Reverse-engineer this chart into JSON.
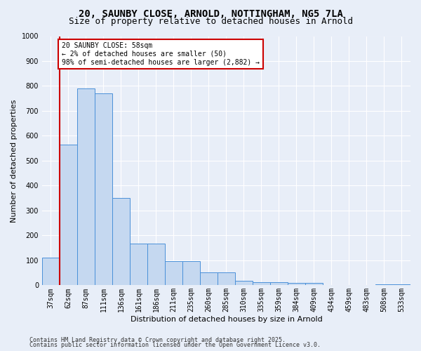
{
  "title_line1": "20, SAUNBY CLOSE, ARNOLD, NOTTINGHAM, NG5 7LA",
  "title_line2": "Size of property relative to detached houses in Arnold",
  "xlabel": "Distribution of detached houses by size in Arnold",
  "ylabel": "Number of detached properties",
  "footnote_line1": "Contains HM Land Registry data © Crown copyright and database right 2025.",
  "footnote_line2": "Contains public sector information licensed under the Open Government Licence v3.0.",
  "bar_labels": [
    "37sqm",
    "62sqm",
    "87sqm",
    "111sqm",
    "136sqm",
    "161sqm",
    "186sqm",
    "211sqm",
    "235sqm",
    "260sqm",
    "285sqm",
    "310sqm",
    "335sqm",
    "359sqm",
    "384sqm",
    "409sqm",
    "434sqm",
    "459sqm",
    "483sqm",
    "508sqm",
    "533sqm"
  ],
  "bar_values": [
    112,
    565,
    790,
    770,
    350,
    168,
    168,
    97,
    97,
    53,
    53,
    18,
    13,
    13,
    10,
    10,
    0,
    0,
    0,
    5,
    5
  ],
  "bar_color": "#c5d8f0",
  "bar_edge_color": "#4a90d9",
  "vline_color": "#cc0000",
  "vline_pos": 0.62,
  "annotation_text": "20 SAUNBY CLOSE: 58sqm\n← 2% of detached houses are smaller (50)\n98% of semi-detached houses are larger (2,882) →",
  "annotation_box_color": "#ffffff",
  "annotation_box_edge": "#cc0000",
  "ylim": [
    0,
    1000
  ],
  "yticks": [
    0,
    100,
    200,
    300,
    400,
    500,
    600,
    700,
    800,
    900,
    1000
  ],
  "background_color": "#e8eef8",
  "grid_color": "#ffffff",
  "title_fontsize": 10,
  "subtitle_fontsize": 9,
  "axis_label_fontsize": 8,
  "tick_fontsize": 7,
  "annot_fontsize": 7,
  "footnote_fontsize": 6
}
